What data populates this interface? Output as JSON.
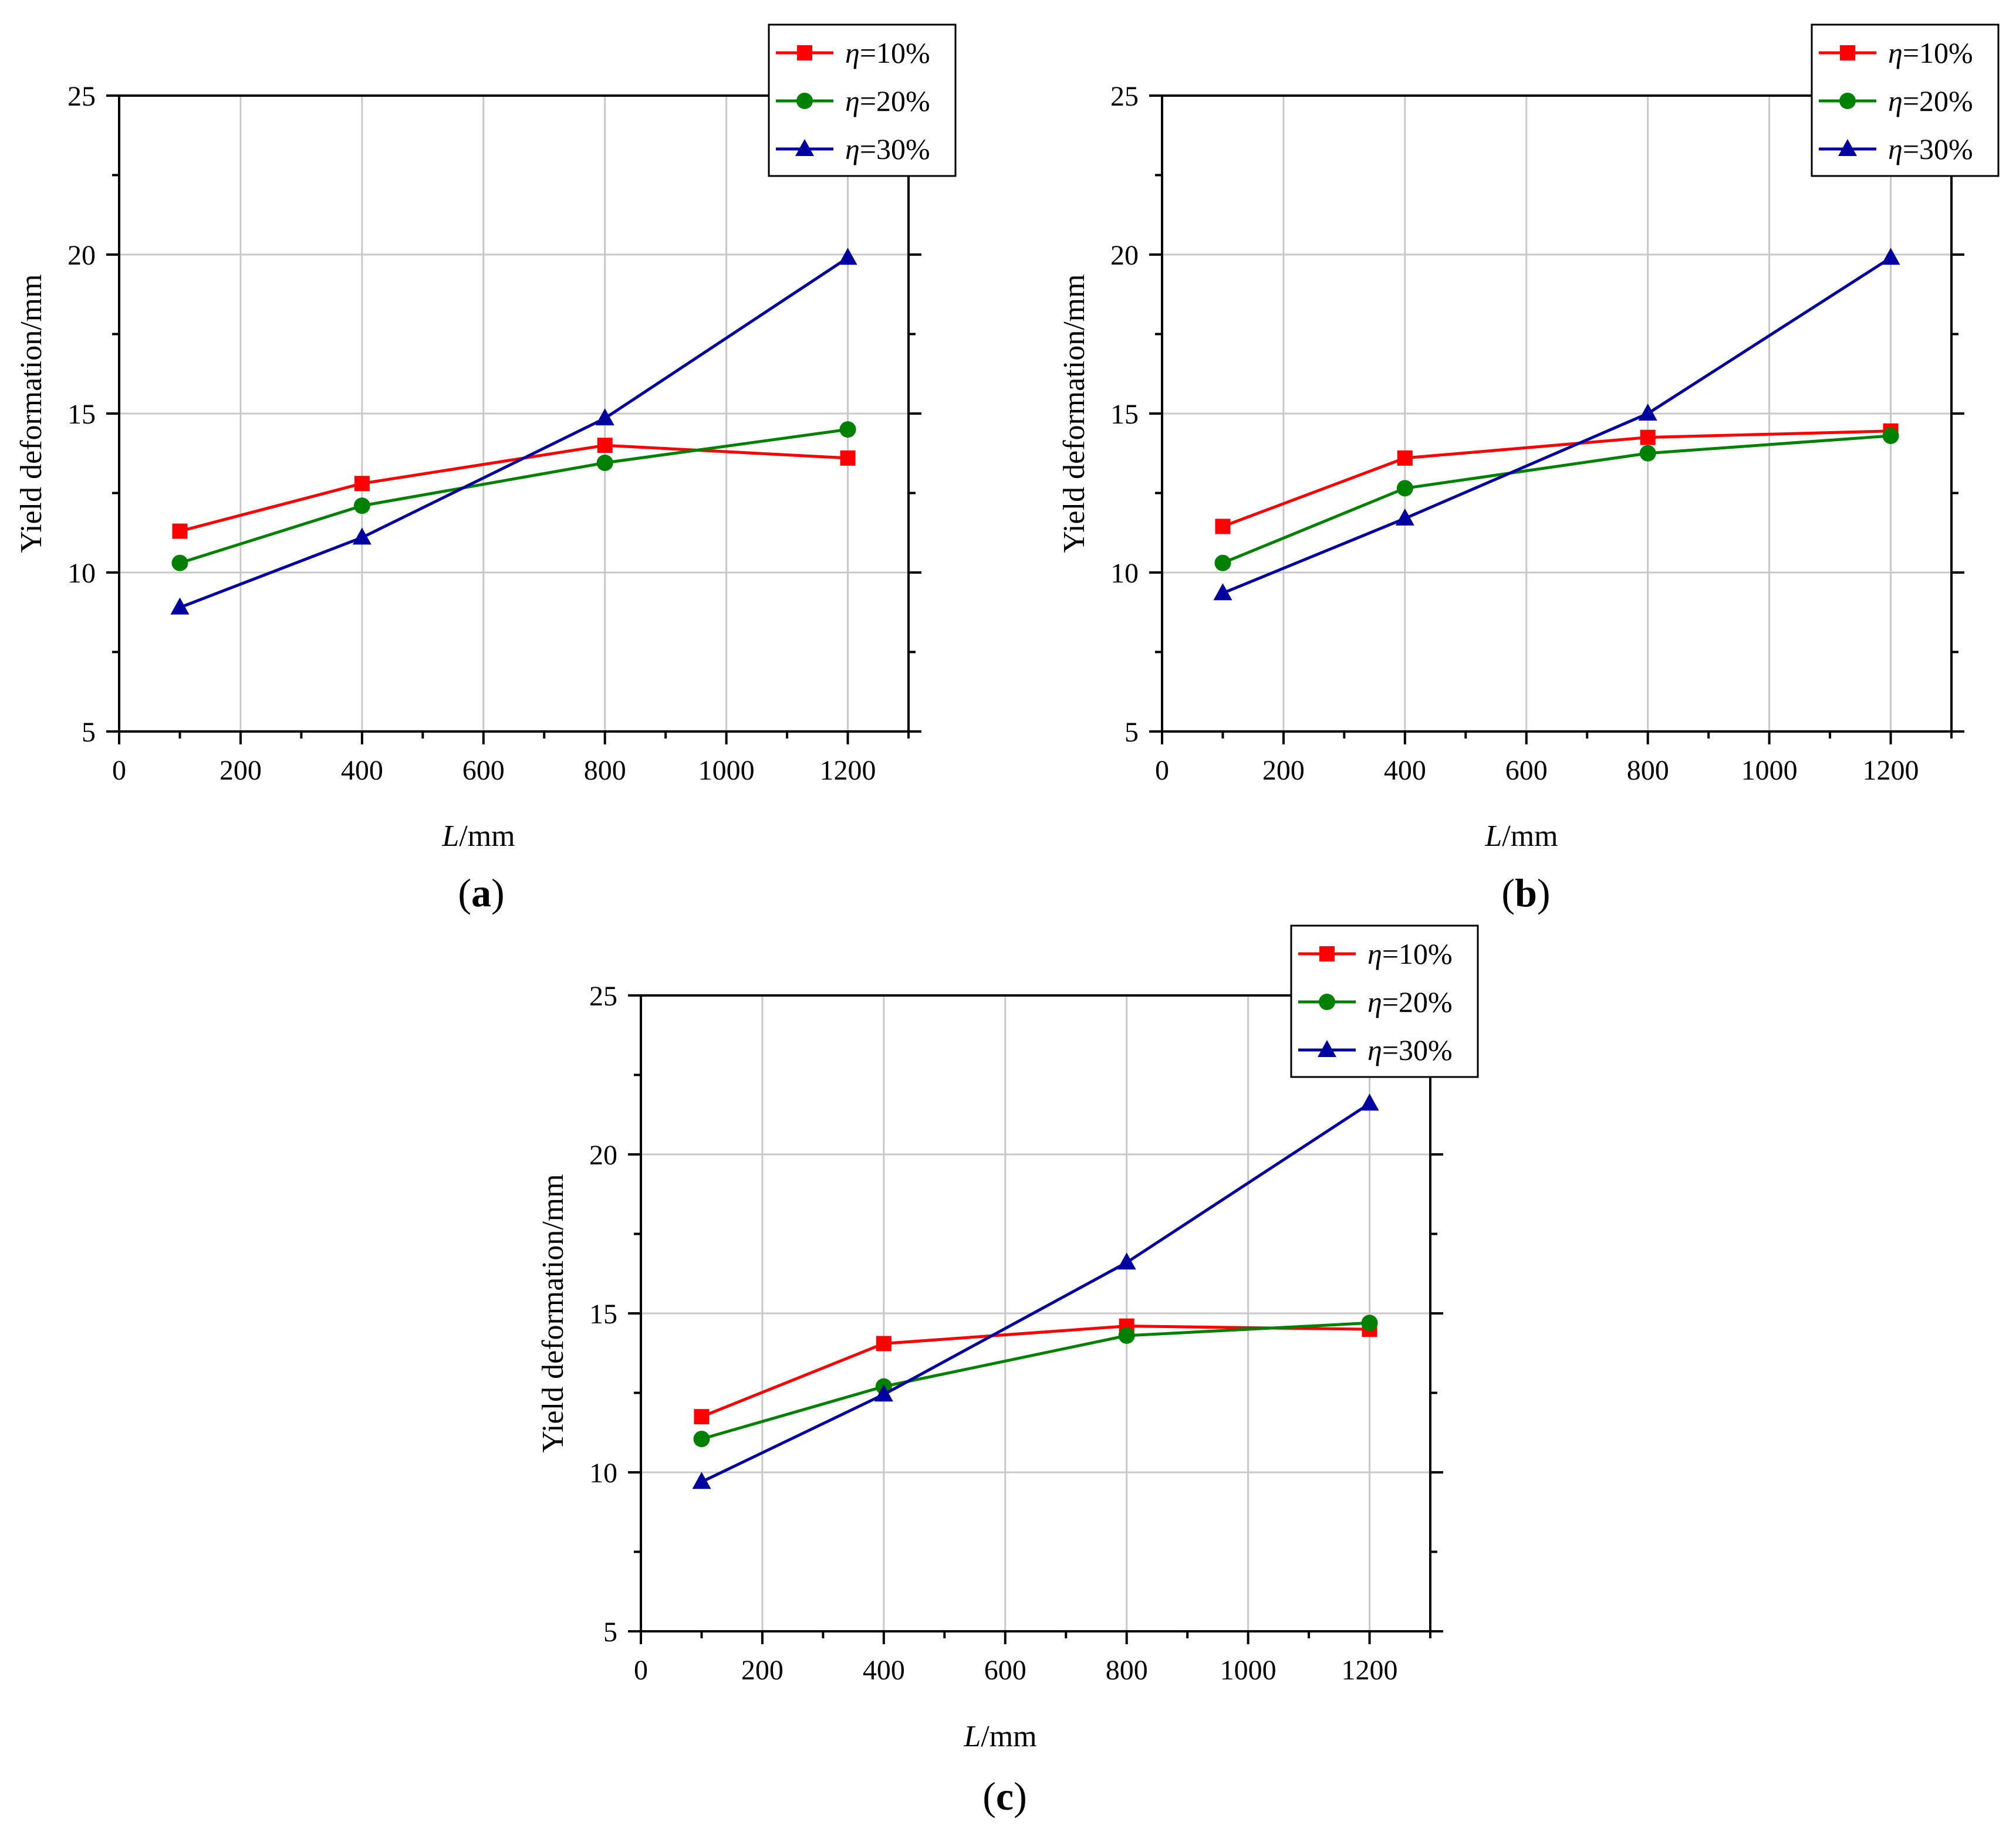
{
  "chart_data": [
    {
      "type": "line",
      "panel_label": "(a)",
      "panel_letter": "a",
      "xlabel_var": "L",
      "xlabel_unit": "/mm",
      "ylabel": "Yield deformation/mm",
      "xlim": [
        0,
        1300
      ],
      "ylim": [
        5,
        25
      ],
      "xticks": [
        0,
        200,
        400,
        600,
        800,
        1000,
        1200
      ],
      "yticks": [
        5,
        10,
        15,
        20,
        25
      ],
      "grid": true,
      "legend_position": "top-right",
      "x": [
        100,
        400,
        800,
        1200
      ],
      "series": [
        {
          "name": "η=10%",
          "symbol": "η",
          "value_label": "=10%",
          "color": "#ff0000",
          "marker": "square",
          "values": [
            11.3,
            12.8,
            14.0,
            13.6
          ]
        },
        {
          "name": "η=20%",
          "symbol": "η",
          "value_label": "=20%",
          "color": "#008000",
          "marker": "circle",
          "values": [
            10.3,
            12.1,
            13.45,
            14.5
          ]
        },
        {
          "name": "η=30%",
          "symbol": "η",
          "value_label": "=30%",
          "color": "#0000a0",
          "marker": "triangle",
          "values": [
            8.9,
            11.1,
            14.85,
            19.9
          ]
        }
      ]
    },
    {
      "type": "line",
      "panel_label": "(b)",
      "panel_letter": "b",
      "xlabel_var": "L",
      "xlabel_unit": "/mm",
      "ylabel": "Yield deformation/mm",
      "xlim": [
        0,
        1300
      ],
      "ylim": [
        5,
        25
      ],
      "xticks": [
        0,
        200,
        400,
        600,
        800,
        1000,
        1200
      ],
      "yticks": [
        5,
        10,
        15,
        20,
        25
      ],
      "grid": true,
      "legend_position": "top-right",
      "x": [
        100,
        400,
        800,
        1200
      ],
      "series": [
        {
          "name": "η=10%",
          "symbol": "η",
          "value_label": "=10%",
          "color": "#ff0000",
          "marker": "square",
          "values": [
            11.45,
            13.6,
            14.25,
            14.45
          ]
        },
        {
          "name": "η=20%",
          "symbol": "η",
          "value_label": "=20%",
          "color": "#008000",
          "marker": "circle",
          "values": [
            10.3,
            12.65,
            13.75,
            14.3
          ]
        },
        {
          "name": "η=30%",
          "symbol": "η",
          "value_label": "=30%",
          "color": "#0000a0",
          "marker": "triangle",
          "values": [
            9.35,
            11.7,
            15.0,
            19.9
          ]
        }
      ]
    },
    {
      "type": "line",
      "panel_label": "(c)",
      "panel_letter": "c",
      "xlabel_var": "L",
      "xlabel_unit": "/mm",
      "ylabel": "Yield deformation/mm",
      "xlim": [
        0,
        1300
      ],
      "ylim": [
        5,
        25
      ],
      "xticks": [
        0,
        200,
        400,
        600,
        800,
        1000,
        1200
      ],
      "yticks": [
        5,
        10,
        15,
        20,
        25
      ],
      "grid": true,
      "legend_position": "top-right",
      "x": [
        100,
        400,
        800,
        1200
      ],
      "series": [
        {
          "name": "η=10%",
          "symbol": "η",
          "value_label": "=10%",
          "color": "#ff0000",
          "marker": "square",
          "values": [
            11.75,
            14.05,
            14.6,
            14.5
          ]
        },
        {
          "name": "η=20%",
          "symbol": "η",
          "value_label": "=20%",
          "color": "#008000",
          "marker": "circle",
          "values": [
            11.05,
            12.7,
            14.3,
            14.7
          ]
        },
        {
          "name": "η=30%",
          "symbol": "η",
          "value_label": "=30%",
          "color": "#0000a0",
          "marker": "triangle",
          "values": [
            9.7,
            12.45,
            16.6,
            21.6
          ]
        }
      ]
    }
  ]
}
